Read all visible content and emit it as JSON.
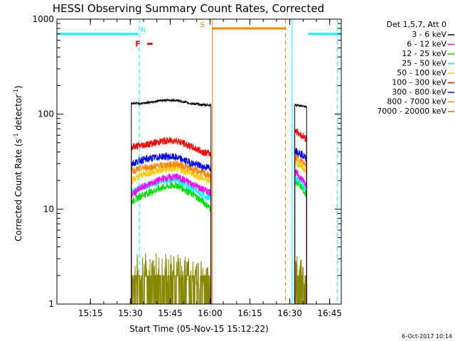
{
  "chart_data": {
    "type": "line",
    "title": "HESSI Observing Summary Count Rates, Corrected",
    "xlabel": "Start Time (05-Nov-15 15:12:22)",
    "ylabel_main": "Corrected Count Rate (s",
    "ylabel_sup1": "-1",
    "ylabel_mid": " detector",
    "ylabel_sup2": "-1",
    "ylabel_end": ")",
    "footer": "6-Oct-2017 10:14",
    "x_range": [
      "15:12:22",
      "16:52:00"
    ],
    "y_range": [
      1,
      1000
    ],
    "y_scale": "log",
    "x_ticks": [
      "15:15",
      "15:30",
      "15:45",
      "16:00",
      "16:15",
      "16:30",
      "16:45"
    ],
    "x_tick_minutes": [
      15,
      30,
      45,
      60,
      75,
      90,
      105
    ],
    "y_ticks": [
      "1",
      "10",
      "100",
      "1000"
    ],
    "y_tick_values": [
      1,
      10,
      100,
      1000
    ],
    "legend": {
      "header": "Det 1,5,7, Att 0",
      "entries": [
        {
          "label": "3 - 6 keV",
          "color": "#000000"
        },
        {
          "label": "6 - 12 keV",
          "color": "#ff00ff"
        },
        {
          "label": "12 - 25 keV",
          "color": "#00dd00"
        },
        {
          "label": "25 - 50 keV",
          "color": "#00ffff"
        },
        {
          "label": "50 - 100 keV",
          "color": "#ffcc00"
        },
        {
          "label": "100 - 300 keV",
          "color": "#ff0000"
        },
        {
          "label": "300 - 800 keV",
          "color": "#0000ff"
        },
        {
          "label": "800 - 7000 keV",
          "color": "#ff8800"
        },
        {
          "label": "7000 - 20000 keV",
          "color": "#888800"
        }
      ]
    },
    "series": [
      {
        "name": "3 - 6 keV",
        "color": "#000000",
        "segments": [
          {
            "x": [
              28,
              32,
              40,
              45,
              50,
              55,
              58
            ],
            "y": [
              130,
              130,
              140,
              140,
              130,
              125,
              125
            ]
          },
          {
            "x": [
              89.5,
              92,
              94
            ],
            "y": [
              125,
              122,
              118
            ]
          }
        ]
      },
      {
        "name": "6 - 12 keV",
        "color": "#ff00ff",
        "segments": [
          {
            "x": [
              28,
              32,
              40,
              45,
              50,
              55,
              58
            ],
            "y": [
              14,
              17,
              21,
              22,
              19,
              16,
              15
            ]
          },
          {
            "x": [
              89.5,
              92,
              94
            ],
            "y": [
              25,
              21,
              18
            ]
          }
        ]
      },
      {
        "name": "12 - 25 keV",
        "color": "#00dd00",
        "segments": [
          {
            "x": [
              28,
              32,
              40,
              45,
              50,
              55,
              58
            ],
            "y": [
              12,
              14,
              17,
              18,
              15,
              12,
              10
            ]
          },
          {
            "x": [
              89.5,
              92,
              94
            ],
            "y": [
              20,
              17,
              14
            ]
          }
        ]
      },
      {
        "name": "25 - 50 keV",
        "color": "#00ffff",
        "segments": [
          {
            "x": [
              28,
              32,
              40,
              45,
              50,
              55,
              58
            ],
            "y": [
              15,
              17,
              20,
              21,
              17,
              14,
              13
            ]
          },
          {
            "x": [
              89.5,
              92,
              94
            ],
            "y": [
              22,
              19,
              16
            ]
          }
        ]
      },
      {
        "name": "50 - 100 keV",
        "color": "#ffcc00",
        "segments": [
          {
            "x": [
              28,
              32,
              40,
              45,
              50,
              55,
              58
            ],
            "y": [
              20,
              23,
              26,
              27,
              24,
              21,
              20
            ]
          },
          {
            "x": [
              89.5,
              92,
              94
            ],
            "y": [
              32,
              28,
              25
            ]
          }
        ]
      },
      {
        "name": "100 - 300 keV",
        "color": "#ff0000",
        "segments": [
          {
            "x": [
              28,
              32,
              40,
              45,
              50,
              55,
              58
            ],
            "y": [
              45,
              47,
              52,
              53,
              46,
              40,
              38
            ]
          },
          {
            "x": [
              89.5,
              92,
              94
            ],
            "y": [
              68,
              60,
              55
            ]
          }
        ]
      },
      {
        "name": "300 - 800 keV",
        "color": "#0000ff",
        "segments": [
          {
            "x": [
              28,
              32,
              40,
              45,
              50,
              55,
              58
            ],
            "y": [
              30,
              33,
              36,
              35,
              31,
              28,
              27
            ]
          },
          {
            "x": [
              89.5,
              92,
              94
            ],
            "y": [
              42,
              38,
              34
            ]
          }
        ]
      },
      {
        "name": "800 - 7000 keV",
        "color": "#ff8800",
        "segments": [
          {
            "x": [
              28,
              32,
              40,
              45,
              50,
              55,
              58
            ],
            "y": [
              25,
              27,
              29,
              30,
              27,
              24,
              22
            ]
          },
          {
            "x": [
              89.5,
              92,
              94
            ],
            "y": [
              36,
              32,
              29
            ]
          }
        ]
      },
      {
        "name": "7000 - 20000 keV",
        "color": "#888800",
        "segments": [
          {
            "x": [
              28,
              32,
              40,
              45,
              50,
              55,
              58
            ],
            "y": [
              2.2,
              2.6,
              2.4,
              2.6,
              2.2,
              2.0,
              1.8
            ]
          },
          {
            "x": [
              89.5,
              92,
              94
            ],
            "y": [
              2.2,
              2.4,
              2.0
            ]
          }
        ]
      }
    ],
    "flag_bars": [
      {
        "label": "N",
        "color": "#00ffff",
        "y": 700,
        "x_ranges": [
          [
            0,
            30.5
          ],
          [
            94.5,
            107
          ]
        ],
        "label_x": 31.5
      },
      {
        "label": "S",
        "color": "#ff8800",
        "y": 800,
        "x_ranges": [
          [
            58.5,
            86
          ]
        ],
        "label_x": 54
      }
    ],
    "flare_marker": {
      "label": "F",
      "color": "#ff0000",
      "y": 550,
      "x_range": [
        34,
        36
      ],
      "label_x": 29.5
    },
    "vlines": [
      {
        "x": 0,
        "color": "#00ffff",
        "style": "solid"
      },
      {
        "x": 31,
        "color": "#00ffff",
        "style": "dashed"
      },
      {
        "x": 58.5,
        "color": "#ff8800",
        "style": "solid"
      },
      {
        "x": 86,
        "color": "#ff8800",
        "style": "dashed"
      },
      {
        "x": 88.5,
        "color": "#00ffff",
        "style": "solid"
      },
      {
        "x": 105.5,
        "color": "#00ffff",
        "style": "dashed"
      }
    ]
  }
}
